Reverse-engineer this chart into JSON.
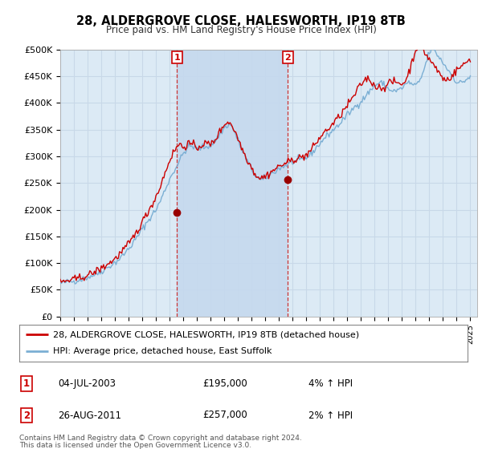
{
  "title": "28, ALDERGROVE CLOSE, HALESWORTH, IP19 8TB",
  "subtitle": "Price paid vs. HM Land Registry's House Price Index (HPI)",
  "ylabel_ticks": [
    "£0",
    "£50K",
    "£100K",
    "£150K",
    "£200K",
    "£250K",
    "£300K",
    "£350K",
    "£400K",
    "£450K",
    "£500K"
  ],
  "ylim": [
    0,
    500000
  ],
  "xlim_start": 1995.0,
  "xlim_end": 2025.5,
  "background_color": "#ffffff",
  "plot_bg_color": "#dceaf5",
  "grid_color": "#c8d8e8",
  "hpi_line_color": "#7bafd4",
  "price_line_color": "#cc0000",
  "marker_color": "#990000",
  "vline_color": "#cc3333",
  "highlight_color": "#c5d9ee",
  "sale1_x": 2003.54,
  "sale1_y": 195000,
  "sale1_label": "1",
  "sale1_date": "04-JUL-2003",
  "sale1_price": "£195,000",
  "sale1_hpi": "4% ↑ HPI",
  "sale2_x": 2011.65,
  "sale2_y": 257000,
  "sale2_label": "2",
  "sale2_date": "26-AUG-2011",
  "sale2_price": "£257,000",
  "sale2_hpi": "2% ↑ HPI",
  "legend_line1": "28, ALDERGROVE CLOSE, HALESWORTH, IP19 8TB (detached house)",
  "legend_line2": "HPI: Average price, detached house, East Suffolk",
  "footer1": "Contains HM Land Registry data © Crown copyright and database right 2024.",
  "footer2": "This data is licensed under the Open Government Licence v3.0.",
  "t": [
    1995.0,
    1995.083,
    1995.167,
    1995.25,
    1995.333,
    1995.417,
    1995.5,
    1995.583,
    1995.667,
    1995.75,
    1995.833,
    1995.917,
    1996.0,
    1996.083,
    1996.167,
    1996.25,
    1996.333,
    1996.417,
    1996.5,
    1996.583,
    1996.667,
    1996.75,
    1996.833,
    1996.917,
    1997.0,
    1997.083,
    1997.167,
    1997.25,
    1997.333,
    1997.417,
    1997.5,
    1997.583,
    1997.667,
    1997.75,
    1997.833,
    1997.917,
    1998.0,
    1998.083,
    1998.167,
    1998.25,
    1998.333,
    1998.417,
    1998.5,
    1998.583,
    1998.667,
    1998.75,
    1998.833,
    1998.917,
    1999.0,
    1999.083,
    1999.167,
    1999.25,
    1999.333,
    1999.417,
    1999.5,
    1999.583,
    1999.667,
    1999.75,
    1999.833,
    1999.917,
    2000.0,
    2000.083,
    2000.167,
    2000.25,
    2000.333,
    2000.417,
    2000.5,
    2000.583,
    2000.667,
    2000.75,
    2000.833,
    2000.917,
    2001.0,
    2001.083,
    2001.167,
    2001.25,
    2001.333,
    2001.417,
    2001.5,
    2001.583,
    2001.667,
    2001.75,
    2001.833,
    2001.917,
    2002.0,
    2002.083,
    2002.167,
    2002.25,
    2002.333,
    2002.417,
    2002.5,
    2002.583,
    2002.667,
    2002.75,
    2002.833,
    2002.917,
    2003.0,
    2003.083,
    2003.167,
    2003.25,
    2003.333,
    2003.417,
    2003.5,
    2003.583,
    2003.667,
    2003.75,
    2003.833,
    2003.917,
    2004.0,
    2004.083,
    2004.167,
    2004.25,
    2004.333,
    2004.417,
    2004.5,
    2004.583,
    2004.667,
    2004.75,
    2004.833,
    2004.917,
    2005.0,
    2005.083,
    2005.167,
    2005.25,
    2005.333,
    2005.417,
    2005.5,
    2005.583,
    2005.667,
    2005.75,
    2005.833,
    2005.917,
    2006.0,
    2006.083,
    2006.167,
    2006.25,
    2006.333,
    2006.417,
    2006.5,
    2006.583,
    2006.667,
    2006.75,
    2006.833,
    2006.917,
    2007.0,
    2007.083,
    2007.167,
    2007.25,
    2007.333,
    2007.417,
    2007.5,
    2007.583,
    2007.667,
    2007.75,
    2007.833,
    2007.917,
    2008.0,
    2008.083,
    2008.167,
    2008.25,
    2008.333,
    2008.417,
    2008.5,
    2008.583,
    2008.667,
    2008.75,
    2008.833,
    2008.917,
    2009.0,
    2009.083,
    2009.167,
    2009.25,
    2009.333,
    2009.417,
    2009.5,
    2009.583,
    2009.667,
    2009.75,
    2009.833,
    2009.917,
    2010.0,
    2010.083,
    2010.167,
    2010.25,
    2010.333,
    2010.417,
    2010.5,
    2010.583,
    2010.667,
    2010.75,
    2010.833,
    2010.917,
    2011.0,
    2011.083,
    2011.167,
    2011.25,
    2011.333,
    2011.417,
    2011.5,
    2011.583,
    2011.667,
    2011.75,
    2011.833,
    2011.917,
    2012.0,
    2012.083,
    2012.167,
    2012.25,
    2012.333,
    2012.417,
    2012.5,
    2012.583,
    2012.667,
    2012.75,
    2012.833,
    2012.917,
    2013.0,
    2013.083,
    2013.167,
    2013.25,
    2013.333,
    2013.417,
    2013.5,
    2013.583,
    2013.667,
    2013.75,
    2013.833,
    2013.917,
    2014.0,
    2014.083,
    2014.167,
    2014.25,
    2014.333,
    2014.417,
    2014.5,
    2014.583,
    2014.667,
    2014.75,
    2014.833,
    2014.917,
    2015.0,
    2015.083,
    2015.167,
    2015.25,
    2015.333,
    2015.417,
    2015.5,
    2015.583,
    2015.667,
    2015.75,
    2015.833,
    2015.917,
    2016.0,
    2016.083,
    2016.167,
    2016.25,
    2016.333,
    2016.417,
    2016.5,
    2016.583,
    2016.667,
    2016.75,
    2016.833,
    2016.917,
    2017.0,
    2017.083,
    2017.167,
    2017.25,
    2017.333,
    2017.417,
    2017.5,
    2017.583,
    2017.667,
    2017.75,
    2017.833,
    2017.917,
    2018.0,
    2018.083,
    2018.167,
    2018.25,
    2018.333,
    2018.417,
    2018.5,
    2018.583,
    2018.667,
    2018.75,
    2018.833,
    2018.917,
    2019.0,
    2019.083,
    2019.167,
    2019.25,
    2019.333,
    2019.417,
    2019.5,
    2019.583,
    2019.667,
    2019.75,
    2019.833,
    2019.917,
    2020.0,
    2020.083,
    2020.167,
    2020.25,
    2020.333,
    2020.417,
    2020.5,
    2020.583,
    2020.667,
    2020.75,
    2020.833,
    2020.917,
    2021.0,
    2021.083,
    2021.167,
    2021.25,
    2021.333,
    2021.417,
    2021.5,
    2021.583,
    2021.667,
    2021.75,
    2021.833,
    2021.917,
    2022.0,
    2022.083,
    2022.167,
    2022.25,
    2022.333,
    2022.417,
    2022.5,
    2022.583,
    2022.667,
    2022.75,
    2022.833,
    2022.917,
    2023.0,
    2023.083,
    2023.167,
    2023.25,
    2023.333,
    2023.417,
    2023.5,
    2023.583,
    2023.667,
    2023.75,
    2023.833,
    2023.917,
    2024.0,
    2024.083,
    2024.167,
    2024.25,
    2024.333,
    2024.417,
    2024.5,
    2024.583,
    2024.667,
    2024.75,
    2024.833,
    2024.917,
    2025.0
  ],
  "hpi_monthly": [
    62000,
    62500,
    63000,
    63500,
    64000,
    64500,
    65000,
    65200,
    65400,
    65600,
    65800,
    66000,
    66200,
    66800,
    67400,
    68000,
    68500,
    69000,
    69500,
    70200,
    70900,
    71600,
    72200,
    72800,
    73400,
    74200,
    75000,
    75800,
    76600,
    77400,
    78200,
    79200,
    80200,
    81200,
    82200,
    83200,
    84500,
    85800,
    87100,
    88400,
    89700,
    91000,
    92300,
    93800,
    95300,
    96800,
    98300,
    99800,
    101000,
    102500,
    104000,
    106000,
    108000,
    110000,
    112000,
    114500,
    117000,
    119500,
    122000,
    124500,
    127000,
    129500,
    132000,
    135000,
    138000,
    141000,
    144000,
    147000,
    150000,
    153500,
    157000,
    160500,
    164000,
    167000,
    170000,
    173000,
    176000,
    179000,
    182000,
    185000,
    188000,
    191000,
    194000,
    197000,
    200000,
    204000,
    208000,
    212000,
    217000,
    222000,
    227000,
    232000,
    237000,
    242000,
    247000,
    252000,
    257000,
    261000,
    265000,
    269000,
    273000,
    277000,
    281000,
    285000,
    289000,
    293000,
    297000,
    301000,
    305000,
    308000,
    311000,
    314000,
    317000,
    318000,
    319000,
    318500,
    318000,
    317000,
    316000,
    315000,
    314000,
    314500,
    315000,
    315500,
    316000,
    316500,
    317000,
    317500,
    318000,
    318500,
    319000,
    319500,
    320000,
    322000,
    324000,
    326000,
    329000,
    332000,
    335000,
    338000,
    341000,
    344000,
    347000,
    350000,
    353000,
    355000,
    357000,
    358000,
    358500,
    358000,
    357000,
    354000,
    350000,
    345000,
    340000,
    335000,
    330000,
    325000,
    320000,
    315000,
    310000,
    305000,
    300000,
    296000,
    292000,
    288000,
    284000,
    280000,
    276000,
    272000,
    268000,
    265000,
    262000,
    260000,
    258000,
    257000,
    256000,
    256500,
    257000,
    258000,
    259000,
    260500,
    262000,
    263500,
    265000,
    266500,
    268000,
    269500,
    271000,
    272500,
    274000,
    275500,
    277000,
    278000,
    279000,
    280000,
    281000,
    282000,
    283000,
    284000,
    285000,
    286000,
    287000,
    288000,
    289000,
    289500,
    290000,
    290500,
    291000,
    291500,
    292000,
    292500,
    293000,
    294000,
    295000,
    296000,
    297000,
    298500,
    300000,
    302000,
    304000,
    306500,
    309000,
    311500,
    314000,
    316500,
    319000,
    321500,
    324000,
    326500,
    329000,
    331500,
    334000,
    336000,
    338000,
    340000,
    342000,
    344000,
    346000,
    348000,
    350000,
    352000,
    354000,
    356000,
    358000,
    360000,
    362500,
    365000,
    367500,
    370000,
    372500,
    375000,
    377500,
    380000,
    382000,
    384000,
    386000,
    388500,
    391000,
    393000,
    395000,
    397000,
    399000,
    401000,
    403000,
    405000,
    407500,
    410000,
    412500,
    415000,
    417500,
    420000,
    422500,
    425000,
    427500,
    430000,
    432000,
    433500,
    435000,
    436000,
    437000,
    437500,
    437000,
    436000,
    434000,
    432000,
    430000,
    428000,
    426000,
    425000,
    424000,
    423500,
    423000,
    422500,
    422000,
    422500,
    423000,
    424000,
    425000,
    426500,
    428000,
    430000,
    432000,
    434000,
    436000,
    437000,
    437500,
    437000,
    436000,
    435000,
    434000,
    433000,
    432000,
    434000,
    436000,
    439000,
    443000,
    448000,
    454000,
    460000,
    467000,
    474000,
    481000,
    488000,
    495000,
    498000,
    499000,
    499500,
    498000,
    496000,
    493000,
    490000,
    487000,
    484000,
    481000,
    478000,
    475000,
    472000,
    469000,
    466000,
    463000,
    460000,
    457000,
    454000,
    451000,
    448000,
    445000,
    442000,
    439000,
    438000,
    437000,
    437500,
    438000,
    439000,
    440000,
    441500,
    443000,
    444500,
    446000,
    447500,
    449000
  ],
  "price_monthly": [
    64000,
    64500,
    65000,
    65500,
    66000,
    66500,
    67000,
    67200,
    67600,
    68000,
    68400,
    68800,
    69000,
    69700,
    70300,
    71000,
    71500,
    72200,
    72800,
    73600,
    74300,
    75100,
    75800,
    76600,
    77200,
    78000,
    79000,
    80000,
    81000,
    82000,
    83200,
    84200,
    85500,
    86800,
    88000,
    89200,
    90000,
    91400,
    92800,
    94200,
    95700,
    97200,
    98700,
    100200,
    101700,
    103200,
    104700,
    106200,
    108000,
    110000,
    112000,
    114500,
    116800,
    119000,
    121200,
    123800,
    126200,
    128600,
    130800,
    133200,
    135600,
    138500,
    141500,
    144500,
    147700,
    151000,
    154500,
    158000,
    161500,
    165500,
    169500,
    173500,
    177500,
    181000,
    184500,
    188000,
    192000,
    196000,
    200000,
    204000,
    208000,
    212000,
    216000,
    220000,
    224000,
    229000,
    234000,
    239000,
    245000,
    251000,
    257000,
    263000,
    269000,
    275000,
    281000,
    287000,
    293000,
    297000,
    301000,
    305000,
    309000,
    313000,
    317000,
    319000,
    321000,
    322000,
    321000,
    319000,
    317000,
    318500,
    320000,
    321800,
    323600,
    323500,
    323200,
    322000,
    320800,
    319600,
    318400,
    317000,
    316000,
    317000,
    318500,
    319500,
    321000,
    322000,
    323000,
    323500,
    324000,
    323500,
    323000,
    322500,
    322000,
    324000,
    326000,
    328000,
    331500,
    335000,
    338500,
    342000,
    345500,
    349000,
    352500,
    356000,
    359500,
    362000,
    363500,
    364000,
    363500,
    362000,
    360000,
    356500,
    353000,
    348000,
    343000,
    338000,
    333000,
    328000,
    323000,
    318000,
    313000,
    308000,
    303000,
    299000,
    295000,
    291000,
    287000,
    283000,
    279000,
    275000,
    271000,
    268000,
    265000,
    263000,
    261000,
    260000,
    259500,
    260000,
    260500,
    261500,
    262500,
    264000,
    265500,
    267000,
    269000,
    270500,
    272000,
    273500,
    275000,
    276500,
    278000,
    279500,
    281000,
    282000,
    283000,
    284000,
    285000,
    286000,
    287000,
    288000,
    289000,
    290000,
    291000,
    292500,
    294000,
    294500,
    295000,
    295500,
    296000,
    296500,
    297000,
    297800,
    298600,
    299500,
    300400,
    301500,
    302500,
    304000,
    306000,
    308500,
    311000,
    314000,
    317000,
    320000,
    323000,
    326000,
    329000,
    332000,
    335000,
    337500,
    340000,
    342500,
    345000,
    347000,
    349000,
    351000,
    353000,
    355000,
    357000,
    359500,
    362000,
    364500,
    367000,
    369500,
    372000,
    374500,
    377000,
    380000,
    383000,
    386000,
    389000,
    392000,
    395000,
    398000,
    401000,
    404000,
    407000,
    410000,
    413500,
    417000,
    420500,
    424000,
    427500,
    431000,
    434500,
    437000,
    439500,
    442000,
    444000,
    445500,
    445000,
    444000,
    442000,
    440000,
    437500,
    435000,
    432500,
    431000,
    430000,
    429500,
    429000,
    428500,
    428000,
    428500,
    429000,
    430500,
    432000,
    434000,
    436000,
    437500,
    438500,
    439000,
    439500,
    439000,
    438500,
    438000,
    437500,
    437000,
    436500,
    436000,
    435500,
    437000,
    439000,
    442000,
    446000,
    451000,
    457500,
    464000,
    471000,
    478000,
    485000,
    492000,
    499000,
    503000,
    505000,
    506000,
    505000,
    503000,
    500000,
    497000,
    494000,
    491000,
    488000,
    485000,
    482000,
    479000,
    476000,
    473000,
    470000,
    467000,
    464000,
    461000,
    458000,
    455000,
    452000,
    449000,
    446000,
    444000,
    442000,
    443000,
    444000,
    445500,
    447000,
    449000,
    451000,
    453500,
    456000,
    458500,
    461000,
    463000,
    465000,
    466500,
    468000,
    469500,
    471000,
    473000,
    475000,
    477000,
    479000,
    481000,
    483000
  ]
}
